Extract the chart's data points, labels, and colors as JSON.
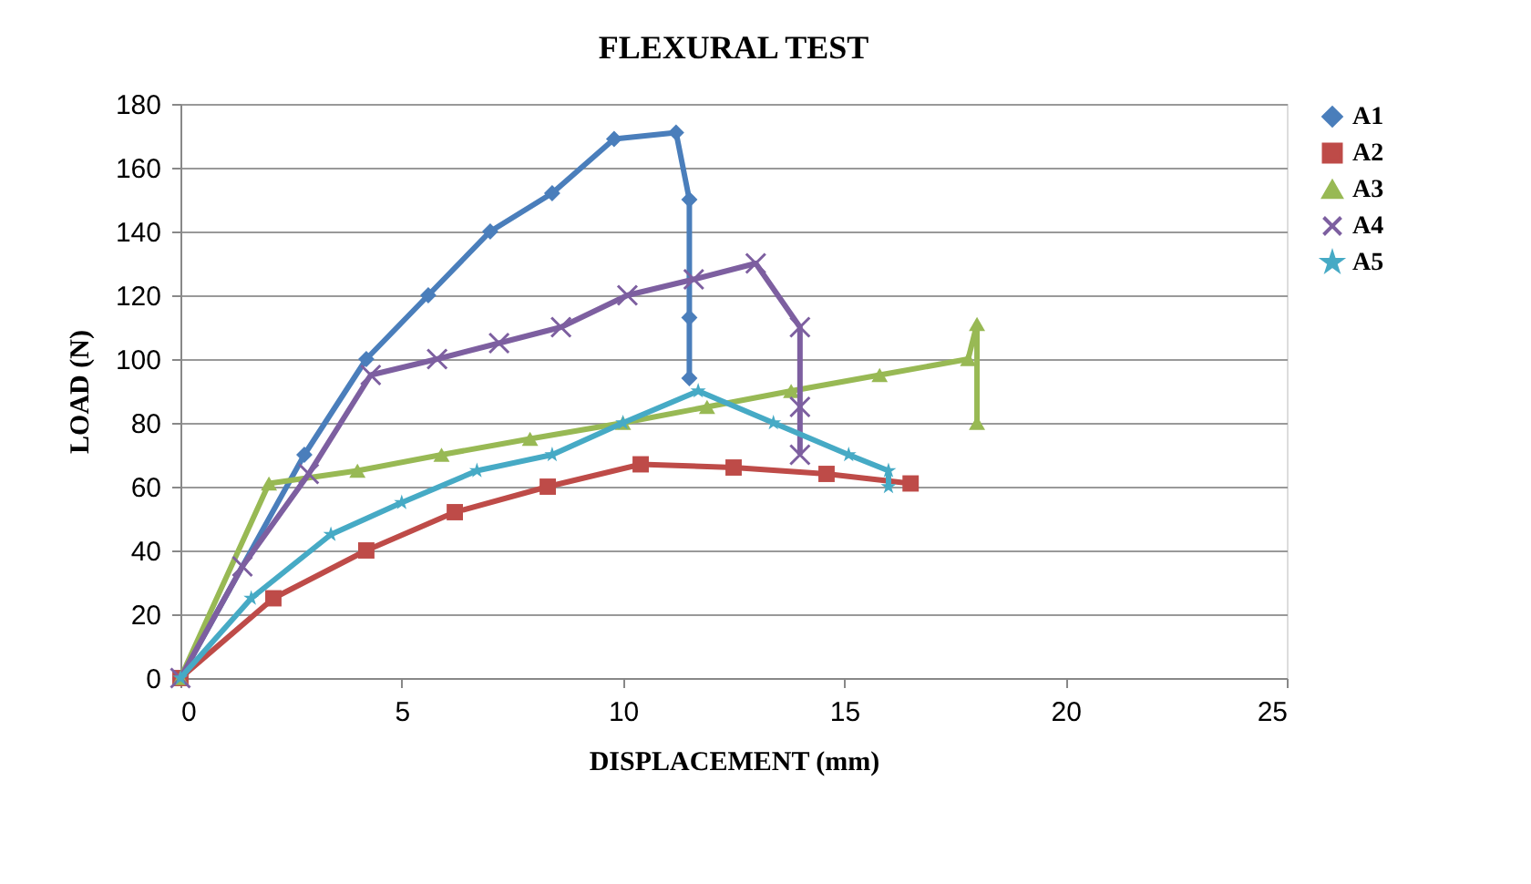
{
  "chart_data": {
    "type": "line",
    "title": "FLEXURAL TEST",
    "xlabel": "DISPLACEMENT (mm)",
    "ylabel": "LOAD (N)",
    "xlim": [
      0,
      25
    ],
    "xticks": [
      0,
      5,
      10,
      15,
      20,
      25
    ],
    "ylim": [
      0,
      180
    ],
    "yticks": [
      0,
      20,
      40,
      60,
      80,
      100,
      120,
      140,
      160,
      180
    ],
    "grid": "y",
    "legend": "right",
    "series": [
      {
        "name": "A1",
        "color": "#4a7ebb",
        "marker": "diamond",
        "x": [
          0,
          2.8,
          4.2,
          5.6,
          7.0,
          8.4,
          9.8,
          11.2,
          11.5,
          11.5,
          11.5
        ],
        "values": [
          0,
          70,
          100,
          120,
          140,
          152,
          169,
          171,
          150,
          113,
          94
        ]
      },
      {
        "name": "A2",
        "color": "#be4b48",
        "marker": "square",
        "x": [
          0,
          2.1,
          4.2,
          6.2,
          8.3,
          10.4,
          12.5,
          14.6,
          16.5
        ],
        "values": [
          0,
          25,
          40,
          52,
          60,
          67,
          66,
          64,
          61
        ]
      },
      {
        "name": "A3",
        "color": "#98b954",
        "marker": "triangle",
        "x": [
          0,
          2.0,
          4.0,
          5.9,
          7.9,
          10.0,
          11.9,
          13.8,
          15.8,
          17.8,
          18.0,
          18.0
        ],
        "values": [
          0,
          61,
          65,
          70,
          75,
          80,
          85,
          90,
          95,
          100,
          111,
          80
        ]
      },
      {
        "name": "A4",
        "color": "#7d5fa0",
        "marker": "cross",
        "x": [
          0,
          1.4,
          2.9,
          4.3,
          5.8,
          7.2,
          8.6,
          10.1,
          11.6,
          13.0,
          14.0,
          14.0,
          14.0
        ],
        "values": [
          0,
          35,
          64,
          95,
          100,
          105,
          110,
          120,
          125,
          130,
          110,
          85,
          70
        ]
      },
      {
        "name": "A5",
        "color": "#46aac5",
        "marker": "star",
        "x": [
          0,
          1.6,
          3.4,
          5.0,
          6.7,
          8.4,
          10.0,
          11.7,
          13.4,
          15.1,
          16.0,
          16.0
        ],
        "values": [
          0,
          25,
          45,
          55,
          65,
          70,
          80,
          90,
          80,
          70,
          65,
          60
        ]
      }
    ]
  }
}
